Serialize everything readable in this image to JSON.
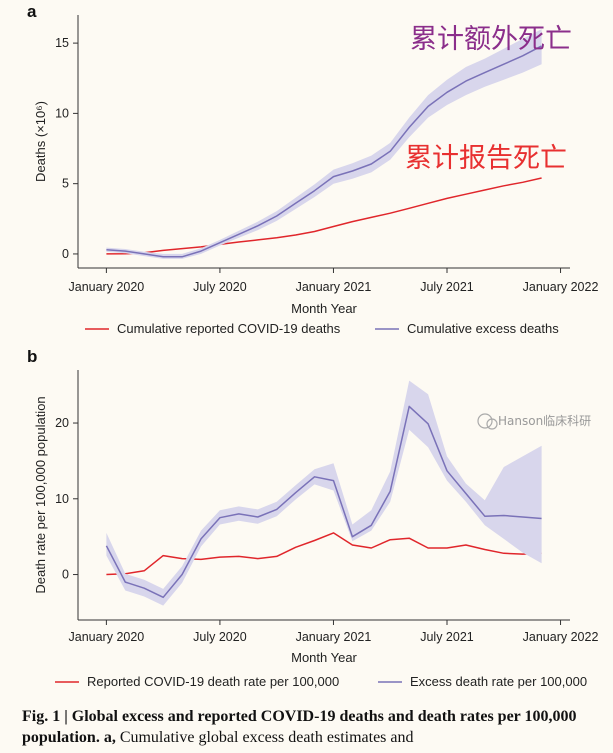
{
  "colors": {
    "reported": "#e0262b",
    "excess": "#7a72b8",
    "band": "#d8d6ec",
    "anno_excess": "#8b2e8b",
    "anno_reported": "#e83030"
  },
  "chart_data": [
    {
      "type": "line",
      "panel_label": "a",
      "xlabel": "Month Year",
      "ylabel": "Deaths  (×10⁶)",
      "x_ticks": [
        "January 2020",
        "July 2020",
        "January 2021",
        "July 2021",
        "January 2022"
      ],
      "x_tick_months": [
        0,
        6,
        12,
        18,
        24
      ],
      "y_ticks": [
        "0",
        "5",
        "10",
        "15"
      ],
      "ylim": [
        -1,
        17
      ],
      "xlim": [
        -1.5,
        24.5
      ],
      "legend_position": "bottom",
      "annotations": [
        "累计额外死亡",
        "累计报告死亡"
      ],
      "series": [
        {
          "name": "Cumulative reported COVID-19 deaths",
          "color_key": "reported",
          "x": [
            0,
            1,
            2,
            3,
            4,
            5,
            6,
            7,
            8,
            9,
            10,
            11,
            12,
            13,
            14,
            15,
            16,
            17,
            18,
            19,
            20,
            21,
            22,
            23
          ],
          "y": [
            0,
            0.01,
            0.08,
            0.25,
            0.38,
            0.5,
            0.68,
            0.85,
            1.0,
            1.15,
            1.35,
            1.6,
            1.95,
            2.3,
            2.6,
            2.9,
            3.25,
            3.6,
            3.95,
            4.25,
            4.55,
            4.85,
            5.1,
            5.4
          ]
        },
        {
          "name": "Cumulative excess deaths",
          "color_key": "excess",
          "x": [
            0,
            1,
            2,
            3,
            4,
            5,
            6,
            7,
            8,
            9,
            10,
            11,
            12,
            13,
            14,
            15,
            16,
            17,
            18,
            19,
            20,
            21,
            22,
            23
          ],
          "y": [
            0.3,
            0.2,
            0.0,
            -0.2,
            -0.2,
            0.2,
            0.8,
            1.4,
            2.0,
            2.7,
            3.6,
            4.5,
            5.5,
            5.9,
            6.4,
            7.3,
            9.0,
            10.5,
            11.5,
            12.3,
            12.9,
            13.5,
            14.1,
            14.8
          ],
          "lower": [
            0.15,
            0.05,
            -0.15,
            -0.35,
            -0.35,
            0.0,
            0.6,
            1.15,
            1.7,
            2.35,
            3.2,
            4.05,
            5.0,
            5.35,
            5.8,
            6.7,
            8.3,
            9.7,
            10.6,
            11.3,
            11.9,
            12.4,
            12.9,
            13.5
          ],
          "upper": [
            0.45,
            0.35,
            0.15,
            0.0,
            0.0,
            0.4,
            1.0,
            1.65,
            2.3,
            3.05,
            4.0,
            4.95,
            6.0,
            6.45,
            7.0,
            7.9,
            9.7,
            11.3,
            12.4,
            13.3,
            13.9,
            14.6,
            15.3,
            16.0
          ]
        }
      ]
    },
    {
      "type": "line",
      "panel_label": "b",
      "xlabel": "Month Year",
      "ylabel": "Death rate per 100,000 population",
      "x_ticks": [
        "January 2020",
        "July 2020",
        "January 2021",
        "July 2021",
        "January 2022"
      ],
      "x_tick_months": [
        0,
        6,
        12,
        18,
        24
      ],
      "y_ticks": [
        "0",
        "10",
        "20"
      ],
      "ylim": [
        -6,
        27
      ],
      "xlim": [
        -1.5,
        24.5
      ],
      "legend_position": "bottom",
      "series": [
        {
          "name": "Reported COVID-19 death rate per 100,000",
          "color_key": "reported",
          "x": [
            0,
            1,
            2,
            3,
            4,
            5,
            6,
            7,
            8,
            9,
            10,
            11,
            12,
            13,
            14,
            15,
            16,
            17,
            18,
            19,
            20,
            21,
            22,
            23
          ],
          "y": [
            0,
            0.1,
            0.5,
            2.5,
            2.1,
            2.0,
            2.3,
            2.4,
            2.1,
            2.4,
            3.6,
            4.5,
            5.5,
            3.9,
            3.5,
            4.6,
            4.8,
            3.5,
            3.5,
            3.9,
            3.3,
            2.8,
            2.7,
            2.8
          ]
        },
        {
          "name": "Excess death rate per 100,000",
          "color_key": "excess",
          "x": [
            0,
            1,
            2,
            3,
            4,
            5,
            6,
            7,
            8,
            9,
            10,
            11,
            12,
            13,
            14,
            15,
            16,
            17,
            18,
            19,
            20,
            21,
            22,
            23
          ],
          "y": [
            3.8,
            -1.0,
            -1.8,
            -3.0,
            0.0,
            4.7,
            7.5,
            8.0,
            7.6,
            8.6,
            10.8,
            12.9,
            12.4,
            5.0,
            6.5,
            11.0,
            22.2,
            19.9,
            13.7,
            10.7,
            7.7,
            7.8,
            7.6,
            7.4
          ],
          "lower": [
            2.5,
            -2.1,
            -2.9,
            -4.1,
            -1.1,
            3.7,
            6.6,
            7.1,
            6.7,
            7.7,
            9.9,
            11.9,
            11.1,
            4.4,
            5.8,
            9.6,
            19.1,
            16.8,
            12.4,
            9.6,
            6.5,
            4.7,
            2.9,
            1.5
          ],
          "upper": [
            5.5,
            0.1,
            -0.7,
            -1.9,
            1.1,
            5.8,
            8.5,
            9.0,
            8.6,
            9.6,
            11.8,
            13.9,
            14.7,
            6.6,
            8.5,
            13.6,
            25.6,
            23.8,
            15.6,
            12.0,
            9.8,
            14.2,
            15.6,
            17.0
          ]
        }
      ]
    }
  ],
  "watermark": "Hanson临床科研",
  "caption": {
    "bold": "Fig. 1 | Global excess and reported COVID-19 deaths and death rates per 100,000 population.",
    "bold_a": " a,",
    "text": " Cumulative global excess death estimates and"
  }
}
